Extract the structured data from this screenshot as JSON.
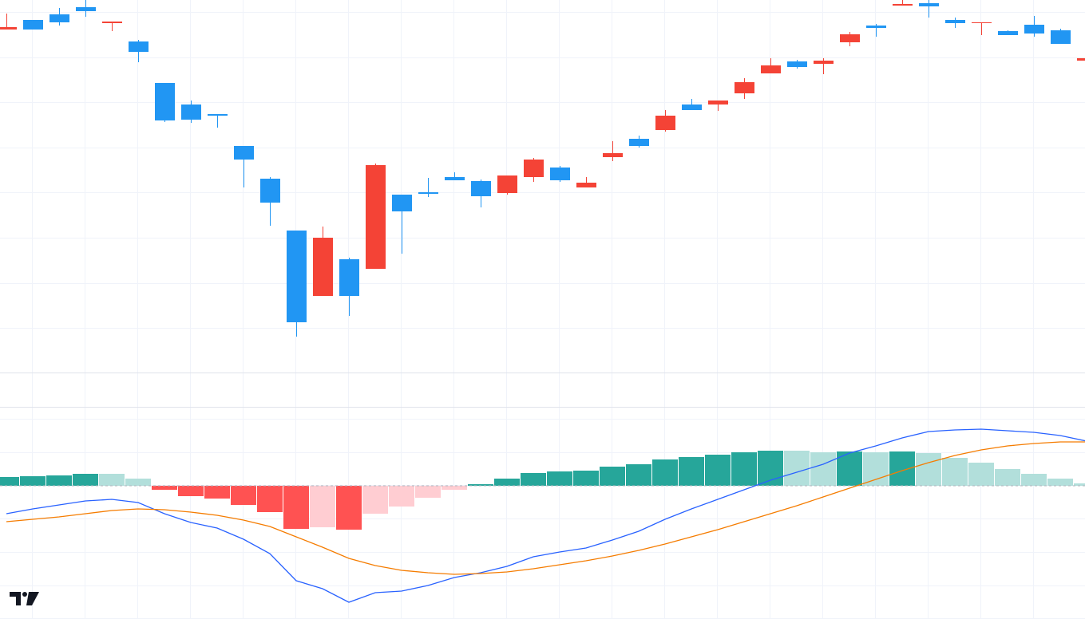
{
  "chart_data": [
    {
      "type": "candlestick",
      "open": [
        430,
        442,
        449,
        458,
        438,
        415,
        363,
        336,
        324,
        284,
        243,
        178,
        96,
        142,
        130,
        223,
        226,
        245,
        240,
        225,
        245,
        257,
        232,
        270,
        293,
        304,
        336,
        336,
        350,
        375,
        390,
        387,
        414,
        435,
        460,
        463,
        442,
        438,
        428,
        436,
        429,
        391
      ],
      "high": [
        450,
        442,
        457,
        467,
        440,
        417,
        363,
        341,
        324,
        284,
        245,
        178,
        183,
        144,
        262,
        223,
        244,
        251,
        242,
        247,
        269,
        259,
        245,
        290,
        297,
        329,
        343,
        341,
        369,
        394,
        392,
        394,
        427,
        437,
        467,
        467,
        445,
        439,
        429,
        447,
        431,
        394
      ],
      "low": [
        430,
        430,
        435,
        446,
        428,
        389,
        314,
        313,
        307,
        232,
        184,
        45,
        96,
        71,
        130,
        149,
        220,
        241,
        207,
        223,
        239,
        239,
        232,
        265,
        282,
        302,
        329,
        328,
        343,
        375,
        381,
        374,
        409,
        421,
        460,
        445,
        432,
        423,
        423,
        421,
        412,
        391
      ],
      "close": [
        433,
        430,
        439,
        453,
        440,
        402,
        316,
        317,
        322,
        267,
        213,
        63,
        169,
        96,
        260,
        202,
        224,
        241,
        221,
        247,
        267,
        241,
        238,
        275,
        284,
        322,
        329,
        341,
        364,
        385,
        383,
        391,
        424,
        432,
        462,
        459,
        438,
        439,
        423,
        425,
        412,
        394
      ],
      "up_color": "#f44336",
      "down_color": "#2196f3",
      "ylim": [
        0,
        467
      ],
      "grid": true
    },
    {
      "type": "macd",
      "histogram": {
        "values": [
          11,
          12,
          13,
          15,
          15,
          9,
          -5,
          -13,
          -16,
          -24,
          -33,
          -54,
          -52,
          -55,
          -35,
          -26,
          -15,
          -5,
          2,
          9,
          16,
          18,
          19,
          24,
          27,
          33,
          36,
          39,
          42,
          44,
          44,
          42,
          43,
          42,
          43,
          41,
          35,
          29,
          21,
          15,
          9,
          3
        ],
        "colors": [
          "#26a69a",
          "#26a69a",
          "#26a69a",
          "#26a69a",
          "#b2dfdb",
          "#b2dfdb",
          "#ff5252",
          "#ff5252",
          "#ff5252",
          "#ff5252",
          "#ff5252",
          "#ff5252",
          "#ffcdd2",
          "#ff5252",
          "#ffcdd2",
          "#ffcdd2",
          "#ffcdd2",
          "#ffcdd2",
          "#26a69a",
          "#26a69a",
          "#26a69a",
          "#26a69a",
          "#26a69a",
          "#26a69a",
          "#26a69a",
          "#26a69a",
          "#26a69a",
          "#26a69a",
          "#26a69a",
          "#26a69a",
          "#b2dfdb",
          "#b2dfdb",
          "#26a69a",
          "#b2dfdb",
          "#26a69a",
          "#b2dfdb",
          "#b2dfdb",
          "#b2dfdb",
          "#b2dfdb",
          "#b2dfdb",
          "#b2dfdb",
          "#b2dfdb"
        ]
      },
      "series": [
        {
          "color": "#2962ff",
          "values": [
            -35,
            -29,
            -24,
            -19,
            -17,
            -21,
            -35,
            -46,
            -53,
            -67,
            -85,
            -119,
            -129,
            -146,
            -134,
            -132,
            -125,
            -115,
            -109,
            -101,
            -89,
            -83,
            -78,
            -68,
            -57,
            -42,
            -29,
            -17,
            -5,
            7,
            17,
            27,
            41,
            50,
            60,
            68,
            70,
            71,
            69,
            67,
            63,
            56
          ]
        },
        {
          "color": "#f57c00",
          "values": [
            -45,
            -42,
            -39,
            -35,
            -31,
            -29,
            -30,
            -33,
            -37,
            -43,
            -51,
            -64,
            -77,
            -91,
            -100,
            -106,
            -109,
            -111,
            -110,
            -108,
            -104,
            -99,
            -94,
            -88,
            -81,
            -73,
            -64,
            -55,
            -45,
            -35,
            -25,
            -14,
            -3,
            8,
            19,
            29,
            38,
            45,
            50,
            53,
            55,
            55
          ]
        }
      ],
      "ylim": [
        -167,
        99
      ],
      "grid": true
    }
  ]
}
